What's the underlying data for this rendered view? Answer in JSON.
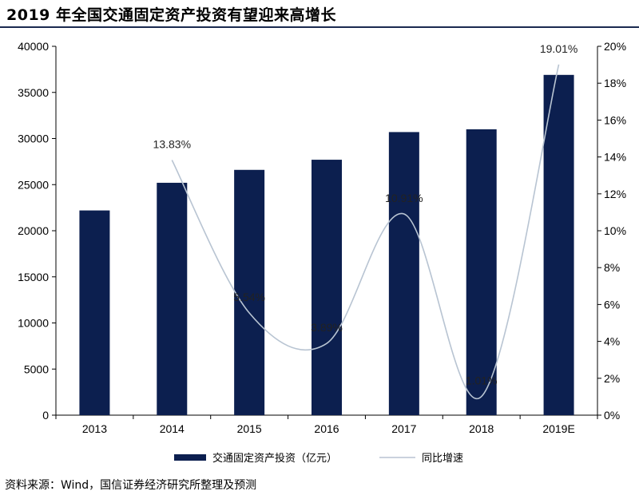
{
  "title": "2019 年全国交通固定资产投资有望迎来高增长",
  "footnote": "资料来源：Wind，国信证券经济研究所整理及预测",
  "chart_data": {
    "type": "bar",
    "categories": [
      "2013",
      "2014",
      "2015",
      "2016",
      "2017",
      "2018",
      "2019E"
    ],
    "series": [
      {
        "name": "交通固定资产投资（亿元）",
        "type": "bar",
        "axis": "left",
        "color": "#0c1f4f",
        "values": [
          22200,
          25200,
          26600,
          27700,
          30700,
          31000,
          36900
        ]
      },
      {
        "name": "同比增速",
        "type": "line",
        "axis": "right",
        "color": "#b8c4d2",
        "values": [
          null,
          13.83,
          5.54,
          3.89,
          10.91,
          1.01,
          19.01
        ],
        "labels": [
          "",
          "13.83%",
          "5.54%",
          "3.89%",
          "10.91%",
          "1.01%",
          "19.01%"
        ]
      }
    ],
    "y_left": {
      "min": 0,
      "max": 40000,
      "step": 5000
    },
    "y_right": {
      "min": 0,
      "max": 20,
      "step": 2,
      "suffix": "%"
    },
    "grid": false,
    "legend_position": "bottom"
  }
}
